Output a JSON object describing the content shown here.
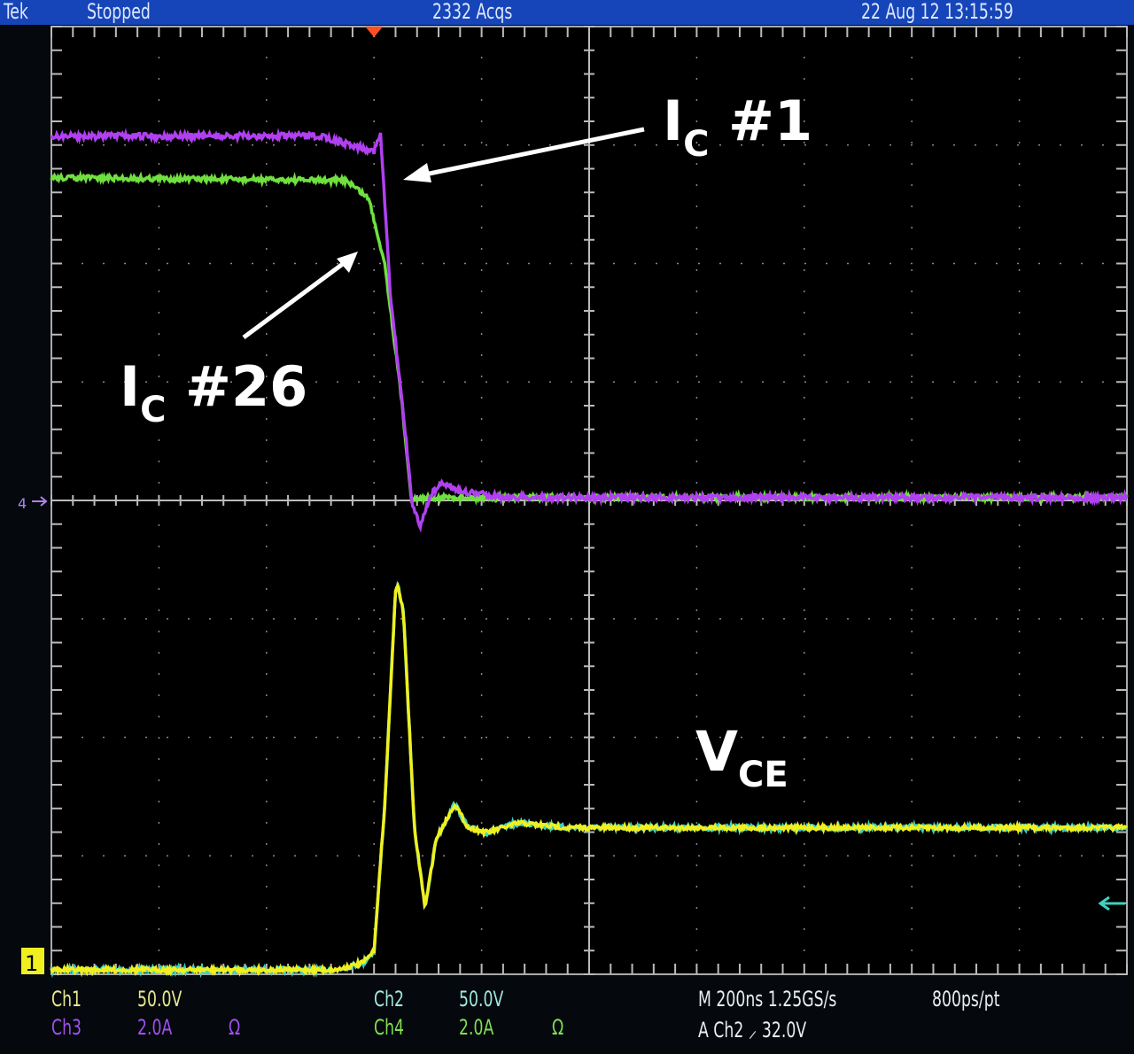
{
  "header": {
    "brand": "Tek",
    "state": "Stopped",
    "acqs": "2332 Acqs",
    "datetime": "22 Aug 12 13:15:59"
  },
  "readouts": {
    "ch1": {
      "label": "Ch1",
      "scale": "50.0V"
    },
    "ch2": {
      "label": "Ch2",
      "scale": "50.0V"
    },
    "ch3": {
      "label": "Ch3",
      "scale": "2.0A",
      "term": "Ω"
    },
    "ch4": {
      "label": "Ch4",
      "scale": "2.0A",
      "term": "Ω"
    },
    "timebase": "M 200ns 1.25GS/s",
    "resolution": "800ps/pt",
    "trigger": "A  Ch2  ⸝  32.0V"
  },
  "annotations": {
    "ic1": {
      "main": "I",
      "sub": "C",
      "rest": " #1"
    },
    "ic26": {
      "main": "I",
      "sub": "C",
      "rest": " #26"
    },
    "vce": {
      "main": "V",
      "sub": "CE"
    }
  },
  "markers": {
    "ch1": "1",
    "current_ground": "4"
  },
  "colors": {
    "header": "#1545b8",
    "ch3": "#b040f0",
    "ch4": "#70e040",
    "ch1": "#f0f020",
    "ch2": "#40d0c0",
    "trigger": "#ff5020"
  },
  "chart_data": {
    "type": "line",
    "x_unit": "ns",
    "xlim": [
      -600,
      1400
    ],
    "x_per_div": 200,
    "grid": true,
    "series": [
      {
        "name": "I_C #1",
        "channel": "Ch3",
        "unit": "A",
        "points": [
          [
            -600,
            6.15
          ],
          [
            -100,
            6.15
          ],
          [
            -40,
            6.0
          ],
          [
            0,
            5.9
          ],
          [
            12,
            6.2
          ],
          [
            30,
            3.5
          ],
          [
            60,
            1.0
          ],
          [
            70,
            0
          ],
          [
            85,
            -0.45
          ],
          [
            105,
            0.1
          ],
          [
            130,
            0.3
          ],
          [
            160,
            0.15
          ],
          [
            250,
            0.05
          ],
          [
            1400,
            0.05
          ]
        ]
      },
      {
        "name": "I_C #26",
        "channel": "Ch4",
        "unit": "A",
        "points": [
          [
            -600,
            5.45
          ],
          [
            -50,
            5.4
          ],
          [
            -10,
            5.1
          ],
          [
            20,
            4.0
          ],
          [
            50,
            1.8
          ],
          [
            70,
            0
          ],
          [
            100,
            0.05
          ],
          [
            1400,
            0.05
          ]
        ]
      },
      {
        "name": "V_CE",
        "channel": "Ch1",
        "unit": "V",
        "points": [
          [
            -600,
            0
          ],
          [
            -70,
            0
          ],
          [
            -20,
            3
          ],
          [
            0,
            8
          ],
          [
            20,
            70
          ],
          [
            40,
            160
          ],
          [
            45,
            162
          ],
          [
            55,
            150
          ],
          [
            75,
            60
          ],
          [
            95,
            26
          ],
          [
            115,
            55
          ],
          [
            150,
            70
          ],
          [
            175,
            60
          ],
          [
            210,
            58
          ],
          [
            270,
            62
          ],
          [
            360,
            60
          ],
          [
            1400,
            60
          ]
        ]
      }
    ]
  }
}
